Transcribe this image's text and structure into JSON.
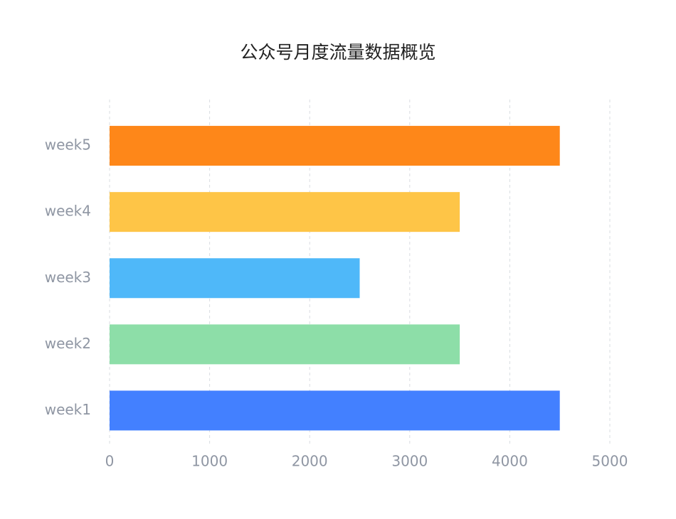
{
  "chart_data": {
    "type": "hbar",
    "title": "公众号月度流量数据概览",
    "categories": [
      "week1",
      "week2",
      "week3",
      "week4",
      "week5"
    ],
    "values": [
      4500,
      3500,
      2500,
      3500,
      4500
    ],
    "colors": [
      "#4380ff",
      "#8ddea8",
      "#4fb8f9",
      "#fec547",
      "#fe8719"
    ],
    "xlim": [
      0,
      5000
    ],
    "xticks": [
      0,
      1000,
      2000,
      3000,
      4000,
      5000
    ],
    "grid": true
  }
}
